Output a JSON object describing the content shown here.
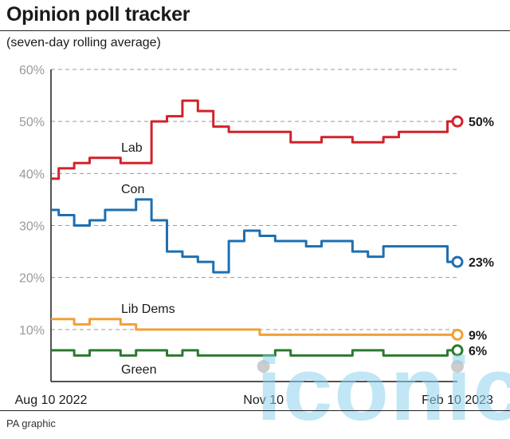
{
  "header": {
    "title": "Opinion poll tracker",
    "subtitle": "(seven-day rolling average)"
  },
  "footer": {
    "credit": "PA graphic"
  },
  "watermark": {
    "text": "iconic"
  },
  "colors": {
    "Lab": "#d1232a",
    "Con": "#1e6fb0",
    "Lib Dems": "#f0a03a",
    "Green": "#2b7a2e",
    "marker": "#cccccc"
  },
  "chart_data": {
    "type": "line",
    "title": "Opinion poll tracker",
    "subtitle": "(seven-day rolling average)",
    "ylim": [
      0,
      60
    ],
    "y_ticks": [
      "60%",
      "50%",
      "40%",
      "30%",
      "20%",
      "10%"
    ],
    "x_ticks": [
      "Aug 10 2022",
      "Nov 10",
      "Feb 10 2023"
    ],
    "x_range": [
      "2022-08-10",
      "2023-02-10"
    ],
    "grid": "horizontal dashed",
    "x": [
      "2022-08-10",
      "2022-08-17",
      "2022-08-24",
      "2022-08-31",
      "2022-09-07",
      "2022-09-14",
      "2022-09-21",
      "2022-09-28",
      "2022-10-05",
      "2022-10-12",
      "2022-10-19",
      "2022-10-26",
      "2022-11-02",
      "2022-11-09",
      "2022-11-16",
      "2022-11-23",
      "2022-11-30",
      "2022-12-07",
      "2022-12-14",
      "2022-12-21",
      "2022-12-28",
      "2023-01-04",
      "2023-01-11",
      "2023-01-18",
      "2023-01-25",
      "2023-02-01",
      "2023-02-10"
    ],
    "series": [
      {
        "name": "Lab",
        "end_label": "50%",
        "values": [
          39,
          41,
          42,
          43,
          43,
          42,
          42,
          50,
          51,
          54,
          52,
          49,
          48,
          48,
          48,
          48,
          46,
          46,
          47,
          47,
          46,
          46,
          47,
          48,
          48,
          48,
          50
        ]
      },
      {
        "name": "Con",
        "end_label": "23%",
        "values": [
          33,
          32,
          30,
          31,
          33,
          33,
          35,
          31,
          25,
          24,
          23,
          21,
          27,
          29,
          28,
          27,
          27,
          26,
          27,
          27,
          25,
          24,
          26,
          26,
          26,
          26,
          23
        ]
      },
      {
        "name": "Lib Dems",
        "end_label": "9%",
        "values": [
          12,
          12,
          11,
          12,
          12,
          11,
          10,
          10,
          10,
          10,
          10,
          10,
          10,
          10,
          9,
          9,
          9,
          9,
          9,
          9,
          9,
          9,
          9,
          9,
          9,
          9,
          9
        ]
      },
      {
        "name": "Green",
        "end_label": "6%",
        "values": [
          6,
          6,
          5,
          6,
          6,
          5,
          6,
          6,
          5,
          6,
          5,
          5,
          5,
          5,
          5,
          6,
          5,
          5,
          5,
          5,
          6,
          6,
          5,
          5,
          5,
          5,
          6
        ]
      }
    ]
  }
}
